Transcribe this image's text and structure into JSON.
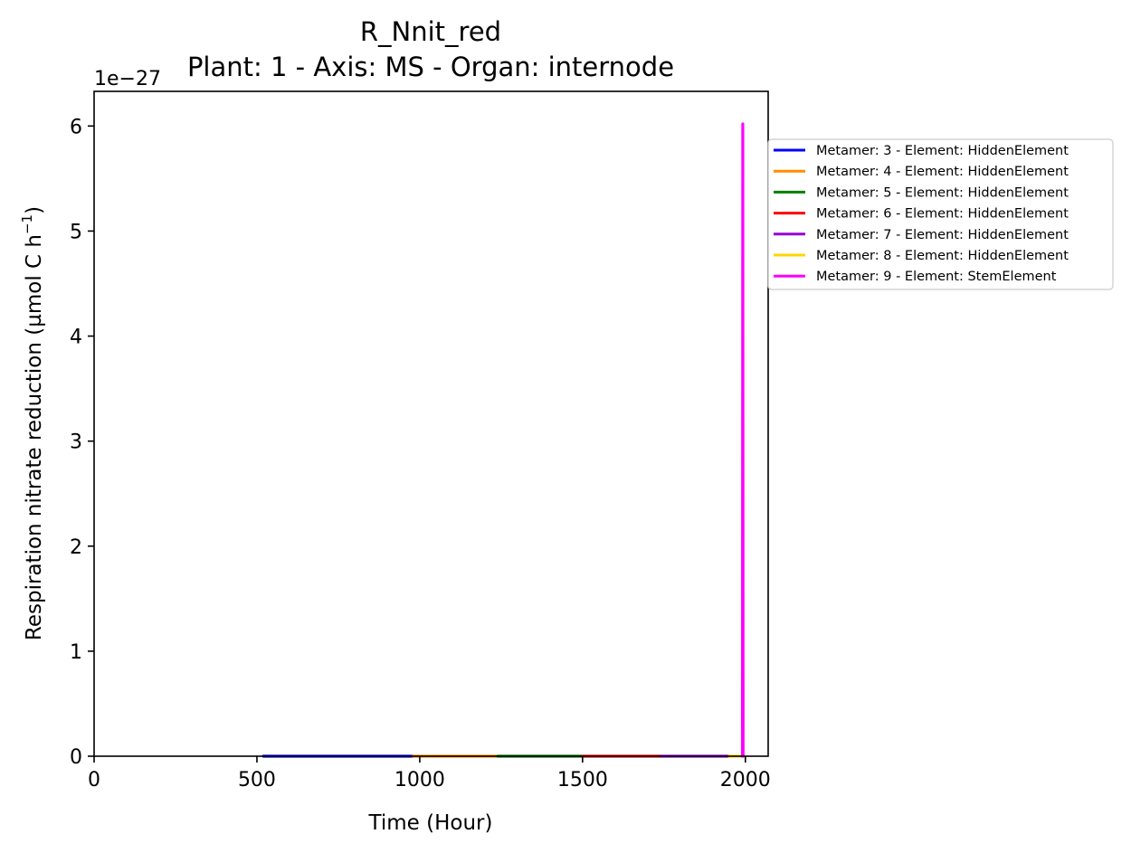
{
  "chart_data": {
    "type": "line",
    "title": "R_Nnit_red",
    "subtitle": "Plant: 1 - Axis: MS - Organ: internode",
    "xlabel": "Time (Hour)",
    "ylabel_main": "Respiration nitrate reduction (µmol C h",
    "ylabel_sup": "−1",
    "ylabel_end": ")",
    "y_offset_text": "1e−27",
    "xlim": [
      0,
      2070
    ],
    "ylim": [
      0,
      6.33
    ],
    "y_scale_exponent": -27,
    "grid": false,
    "legend_position": "outside right, upper",
    "x_ticks": [
      {
        "value": 0,
        "label": "0"
      },
      {
        "value": 500,
        "label": "500"
      },
      {
        "value": 1000,
        "label": "1000"
      },
      {
        "value": 1500,
        "label": "1500"
      },
      {
        "value": 2000,
        "label": "2000"
      }
    ],
    "y_ticks": [
      {
        "value": 0,
        "label": "0"
      },
      {
        "value": 1,
        "label": "1"
      },
      {
        "value": 2,
        "label": "2"
      },
      {
        "value": 3,
        "label": "3"
      },
      {
        "value": 4,
        "label": "4"
      },
      {
        "value": 5,
        "label": "5"
      },
      {
        "value": 6,
        "label": "6"
      }
    ],
    "series": [
      {
        "name": "Metamer: 3 - Element: HiddenElement",
        "color": "#0000ff",
        "points": [
          [
            520,
            0
          ],
          [
            980,
            0
          ]
        ]
      },
      {
        "name": "Metamer: 4 - Element: HiddenElement",
        "color": "#ff8c00",
        "points": [
          [
            980,
            0
          ],
          [
            1240,
            0
          ]
        ]
      },
      {
        "name": "Metamer: 5 - Element: HiddenElement",
        "color": "#008000",
        "points": [
          [
            1240,
            0
          ],
          [
            1500,
            0
          ]
        ]
      },
      {
        "name": "Metamer: 6 - Element: HiddenElement",
        "color": "#ff0000",
        "points": [
          [
            1500,
            0
          ],
          [
            1740,
            0
          ]
        ]
      },
      {
        "name": "Metamer: 7 - Element: HiddenElement",
        "color": "#9400d3",
        "points": [
          [
            1740,
            0
          ],
          [
            1950,
            0
          ]
        ]
      },
      {
        "name": "Metamer: 8 - Element: HiddenElement",
        "color": "#ffd700",
        "points": [
          [
            1950,
            0
          ],
          [
            1990,
            0
          ]
        ]
      },
      {
        "name": "Metamer: 9 - Element: StemElement",
        "color": "#ff00ff",
        "points": [
          [
            1991,
            0
          ],
          [
            1992,
            6.02
          ],
          [
            1993,
            0
          ]
        ]
      }
    ]
  }
}
